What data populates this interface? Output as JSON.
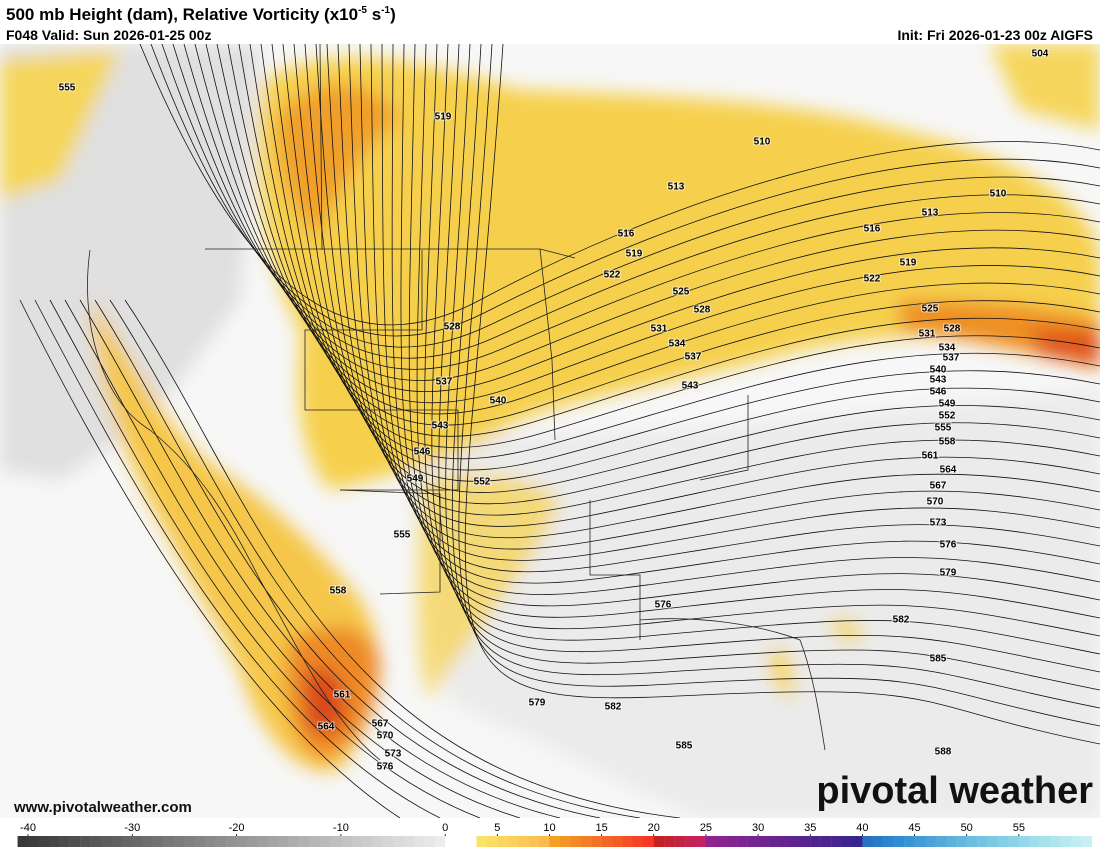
{
  "header": {
    "title": [
      "500 mb Height (dam), Relative Vorticity (x10",
      "-5",
      " s",
      "-1",
      ")"
    ],
    "valid": "F048 Valid: Sun 2026-01-25 00z",
    "init": "Init: Fri 2026-01-23 00z AIGFS"
  },
  "map": {
    "contour_labels": [
      "555",
      "519",
      "510",
      "513",
      "510",
      "513",
      "516",
      "516",
      "519",
      "519",
      "522",
      "522",
      "525",
      "525",
      "528",
      "528",
      "528",
      "531",
      "531",
      "534",
      "534",
      "537",
      "537",
      "537",
      "540",
      "543",
      "543",
      "540",
      "546",
      "549",
      "552",
      "543",
      "546",
      "555",
      "558",
      "561",
      "564",
      "567",
      "549",
      "552",
      "570",
      "573",
      "555",
      "576",
      "579",
      "558",
      "576",
      "582",
      "585",
      "561",
      "582",
      "579",
      "564",
      "567",
      "570",
      "573",
      "576",
      "585",
      "588",
      "504"
    ]
  },
  "footer": {
    "url": "www.pivotalweather.com",
    "logo": "pivotal weather"
  },
  "colorbar": {
    "ticks": [
      -40,
      -30,
      -20,
      -10,
      0,
      5,
      10,
      15,
      20,
      25,
      30,
      35,
      40,
      45,
      50,
      55
    ]
  }
}
